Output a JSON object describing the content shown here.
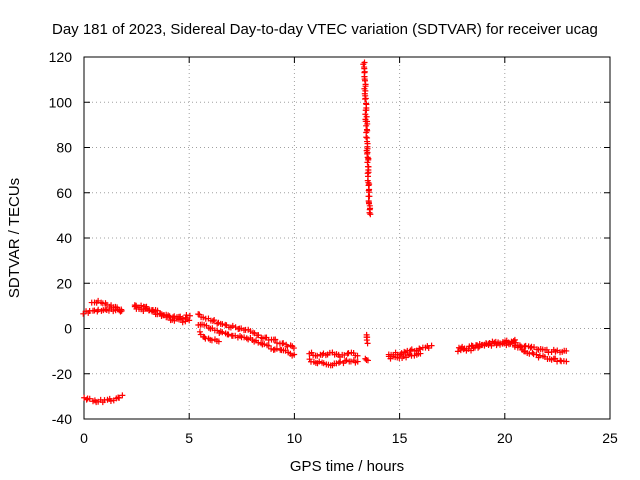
{
  "chart_data": {
    "type": "scatter",
    "title": "Day 181 of 2023, Sidereal Day-to-day VTEC variation (SDTVAR) for receiver ucag",
    "xlabel": "GPS time / hours",
    "ylabel": "SDTVAR / TECUs",
    "xlim": [
      0,
      25
    ],
    "ylim": [
      -40,
      120
    ],
    "xticks": [
      0,
      5,
      10,
      15,
      20,
      25
    ],
    "yticks": [
      -40,
      -20,
      0,
      20,
      40,
      60,
      80,
      100,
      120
    ],
    "grid": true,
    "marker": "plus",
    "color": "#ff0000",
    "series": [
      {
        "name": "SDTVAR",
        "segments": [
          {
            "x": [
              0.0,
              0.5,
              1.0,
              1.5,
              1.8
            ],
            "y": [
              7,
              8,
              8,
              8,
              8
            ]
          },
          {
            "x": [
              0.4,
              0.8,
              1.2,
              1.6,
              1.8
            ],
            "y": [
              12,
              12,
              10,
              9,
              8
            ]
          },
          {
            "x": [
              0.0,
              0.5,
              1.0,
              1.5,
              1.8
            ],
            "y": [
              -31,
              -32,
              -32,
              -31,
              -30
            ]
          },
          {
            "x": [
              2.4,
              3.0,
              3.6,
              4.2,
              4.8,
              5.0
            ],
            "y": [
              10,
              9,
              7,
              5,
              5,
              6
            ]
          },
          {
            "x": [
              2.4,
              3.0,
              3.6,
              4.2,
              4.8,
              5.0
            ],
            "y": [
              9,
              8,
              6,
              4,
              3,
              4
            ]
          },
          {
            "x": [
              5.4,
              6.0,
              6.5,
              7.0,
              7.5,
              8.0,
              8.5,
              9.0,
              9.5,
              10.0
            ],
            "y": [
              6,
              4,
              2,
              1,
              0,
              -2,
              -4,
              -5,
              -7,
              -8
            ]
          },
          {
            "x": [
              5.4,
              6.0,
              6.5,
              7.0,
              7.5,
              8.0,
              8.5,
              9.0,
              9.5,
              10.0
            ],
            "y": [
              2,
              0,
              -2,
              -3,
              -4,
              -5,
              -7,
              -9,
              -10,
              -12
            ]
          },
          {
            "x": [
              5.5,
              5.8,
              6.1,
              6.4
            ],
            "y": [
              -2,
              -4,
              -5,
              -6
            ]
          },
          {
            "x": [
              10.7,
              11.2,
              11.7,
              12.2,
              12.7,
              13.0
            ],
            "y": [
              -11,
              -12,
              -11,
              -12,
              -11,
              -12
            ]
          },
          {
            "x": [
              10.7,
              11.2,
              11.7,
              12.2,
              12.7,
              13.0
            ],
            "y": [
              -14,
              -15,
              -16,
              -15,
              -14,
              -15
            ]
          },
          {
            "x": [
              13.4,
              13.45,
              13.5
            ],
            "y": [
              -3,
              -4,
              -6
            ]
          },
          {
            "x": [
              13.4,
              13.5
            ],
            "y": [
              -14,
              -14
            ]
          },
          {
            "x": [
              13.3,
              13.35,
              13.4,
              13.45,
              13.5,
              13.55,
              13.6
            ],
            "y": [
              118,
              108,
              96,
              84,
              70,
              58,
              50
            ]
          },
          {
            "x": [
              14.5,
              15.0,
              15.5,
              16.0,
              16.5
            ],
            "y": [
              -11,
              -11,
              -10,
              -9,
              -8
            ]
          },
          {
            "x": [
              14.5,
              15.0,
              15.5,
              16.0
            ],
            "y": [
              -13,
              -13,
              -12,
              -11
            ]
          },
          {
            "x": [
              17.8,
              18.5,
              19.0,
              19.5,
              20.0,
              20.5
            ],
            "y": [
              -9,
              -8,
              -7,
              -6,
              -6,
              -5
            ]
          },
          {
            "x": [
              17.8,
              18.5,
              19.0,
              19.5,
              20.0,
              20.5
            ],
            "y": [
              -10,
              -9,
              -7,
              -7,
              -7,
              -6
            ]
          },
          {
            "x": [
              20.5,
              21.0,
              21.5,
              22.0,
              22.5,
              22.9
            ],
            "y": [
              -7,
              -8,
              -9,
              -10,
              -10,
              -10
            ]
          },
          {
            "x": [
              20.5,
              21.0,
              21.5,
              22.0,
              22.5,
              22.9
            ],
            "y": [
              -8,
              -10,
              -12,
              -13,
              -14,
              -15
            ]
          }
        ]
      }
    ]
  }
}
